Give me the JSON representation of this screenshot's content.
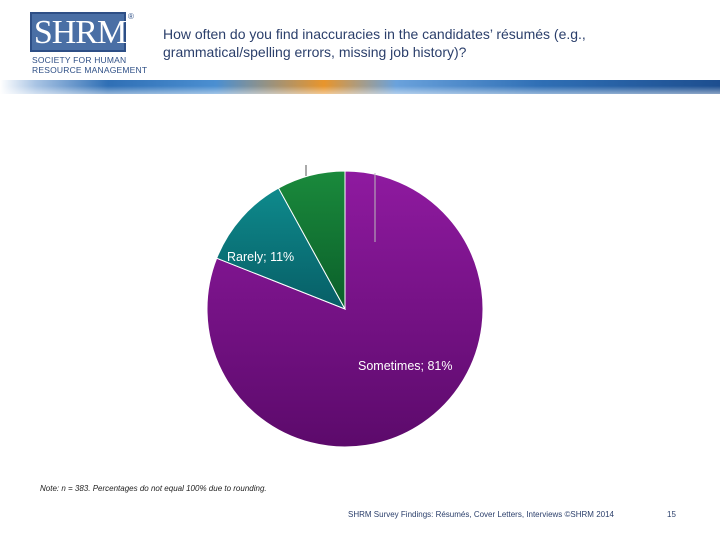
{
  "logo": {
    "letters": "SHRM",
    "registered": "®",
    "line1": "SOCIETY FOR HUMAN",
    "line2": "RESOURCE MANAGEMENT"
  },
  "title": "How often do you find inaccuracies in the candidates’ résumés (e.g., grammatical/spelling errors, missing job history)?",
  "chart_data": {
    "type": "pie",
    "title": "How often do you find inaccuracies in the candidates’ résumés (e.g., grammatical/spelling errors, missing job history)?",
    "slices": [
      {
        "name": "Sometimes",
        "value": 81,
        "label": "Sometimes; 81%",
        "color_light": "#8f1aa0",
        "color_dark": "#5c0a6b"
      },
      {
        "name": "Rarely",
        "value": 11,
        "label": "Rarely; 11%",
        "color_light": "#0e8a8c",
        "color_dark": "#075e66"
      },
      {
        "name": "",
        "value": 8,
        "label": "",
        "color_light": "#1a8a3c",
        "color_dark": "#0b5f2a"
      }
    ],
    "start_angle_deg": 0,
    "direction": "clockwise"
  },
  "note": "Note: n = 383. Percentages do not equal 100% due to rounding.",
  "footer": "SHRM Survey Findings: Résumés, Cover Letters, Interviews ©SHRM 2014",
  "page_number": "15",
  "colors": {
    "title": "#2b3f6b",
    "brand": "#4a6fa5",
    "band_blue": "#2f6fb5",
    "band_orange": "#e8952c"
  }
}
